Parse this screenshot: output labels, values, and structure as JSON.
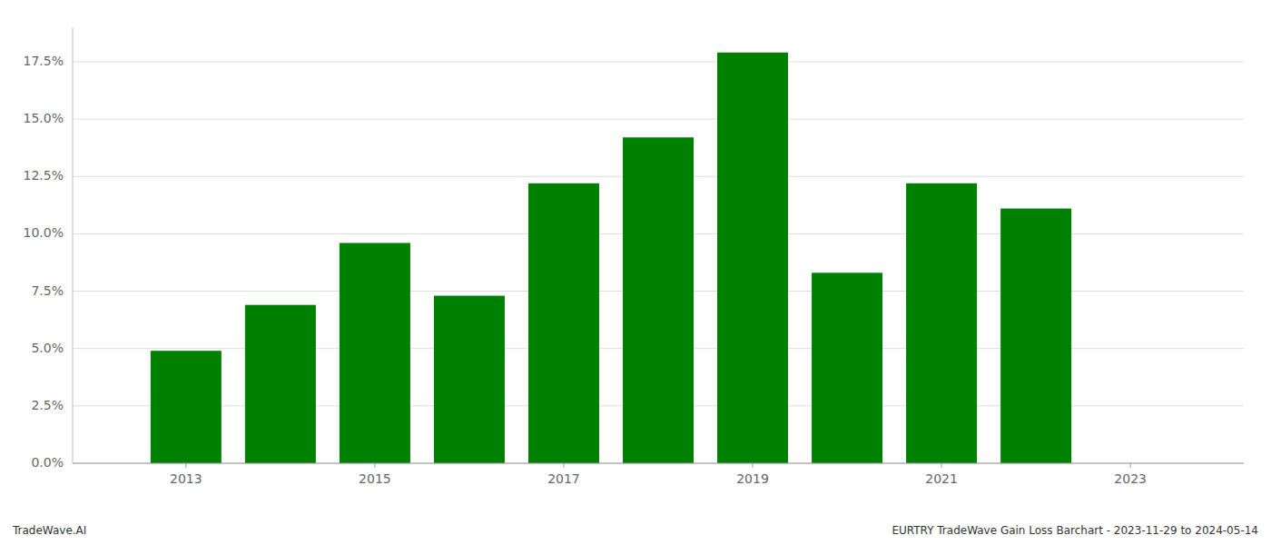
{
  "chart_data": {
    "type": "bar",
    "x": [
      2013,
      2014,
      2015,
      2016,
      2017,
      2018,
      2019,
      2020,
      2021,
      2022
    ],
    "values": [
      0.049,
      0.069,
      0.096,
      0.073,
      0.122,
      0.142,
      0.179,
      0.083,
      0.122,
      0.111
    ],
    "color": "#008000",
    "xlim": [
      2011.8,
      2024.2
    ],
    "xticks": [
      2013,
      2015,
      2017,
      2019,
      2021,
      2023
    ],
    "ylim": [
      0,
      0.19
    ],
    "yticks": [
      {
        "value": 0.0,
        "label": "0.0%"
      },
      {
        "value": 0.025,
        "label": "2.5%"
      },
      {
        "value": 0.05,
        "label": "5.0%"
      },
      {
        "value": 0.075,
        "label": "7.5%"
      },
      {
        "value": 0.1,
        "label": "10.0%"
      },
      {
        "value": 0.125,
        "label": "12.5%"
      },
      {
        "value": 0.15,
        "label": "15.0%"
      },
      {
        "value": 0.175,
        "label": "17.5%"
      }
    ],
    "grid": true,
    "annotations": [
      "TradeWave.AI",
      "EURTRY TradeWave Gain Loss Barchart - 2023-11-29 to 2024-05-14"
    ]
  }
}
